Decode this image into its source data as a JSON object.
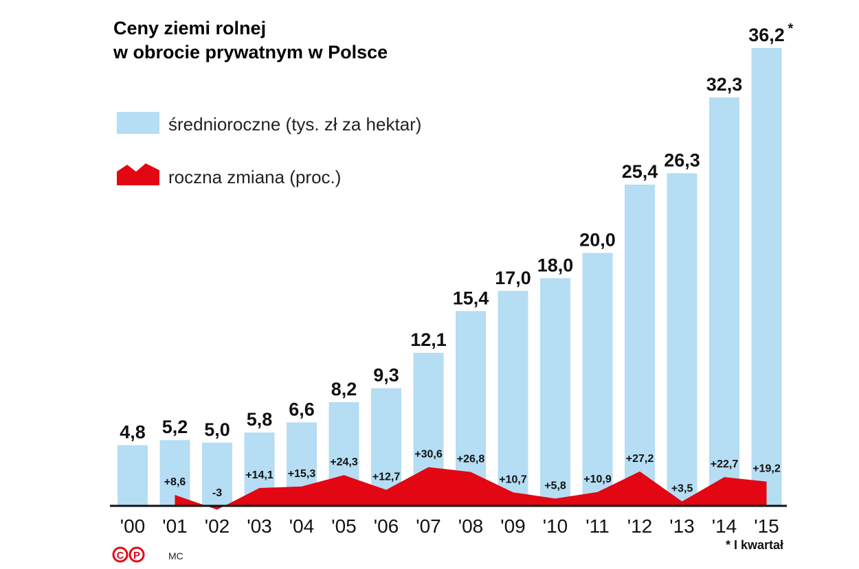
{
  "chart_data": {
    "type": "bar",
    "title": [
      "Ceny ziemi rolnej",
      "w obrocie prywatnym w Polsce"
    ],
    "categories": [
      "'00",
      "'01",
      "'02",
      "'03",
      "'04",
      "'05",
      "'06",
      "'07",
      "'08",
      "'09",
      "'10",
      "'11",
      "'12",
      "'13",
      "'14",
      "'15"
    ],
    "series": [
      {
        "name": "średnioroczne (tys. zł za hektar)",
        "color": "#b5ddf3",
        "type": "bar",
        "values": [
          4.8,
          5.2,
          5.0,
          5.8,
          6.6,
          8.2,
          9.3,
          12.1,
          15.4,
          17.0,
          18.0,
          20.0,
          25.4,
          26.3,
          32.3,
          36.2
        ],
        "value_labels": [
          "4,8",
          "5,2",
          "5,0",
          "5,8",
          "6,6",
          "8,2",
          "9,3",
          "12,1",
          "15,4",
          "17,0",
          "18,0",
          "20,0",
          "25,4",
          "26,3",
          "32,3",
          "36,2"
        ]
      },
      {
        "name": "roczna zmiana (proc.)",
        "color": "#e30613",
        "type": "area",
        "axis": "y2",
        "values": [
          null,
          8.6,
          -3,
          14.1,
          15.3,
          24.3,
          12.7,
          30.6,
          26.8,
          10.7,
          5.8,
          10.9,
          27.2,
          3.5,
          22.7,
          19.2
        ],
        "value_labels": [
          null,
          "+8,6",
          "-3",
          "+14,1",
          "+15,3",
          "+24,3",
          "+12,7",
          "+30,6",
          "+26,8",
          "+10,7",
          "+5,8",
          "+10,9",
          "+27,2",
          "+3,5",
          "+22,7",
          "+19,2"
        ]
      }
    ],
    "ylim": [
      0,
      40
    ],
    "y2lim": [
      0,
      400
    ],
    "footnote_marker": "*",
    "footnote": "* I kwartał",
    "credit": "MC",
    "logo": [
      "C",
      "P"
    ]
  }
}
